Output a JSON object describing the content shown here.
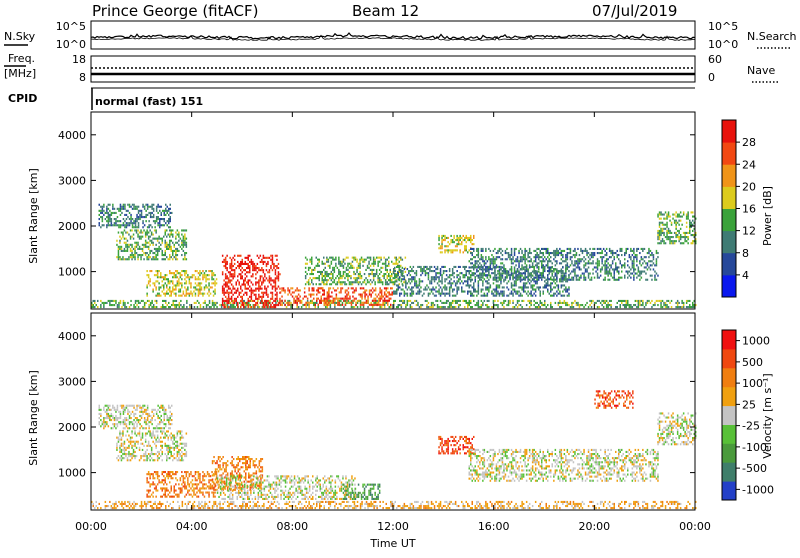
{
  "header": {
    "radar": "Prince George (fitACF)",
    "beam": "Beam 12",
    "date": "07/Jul/2019"
  },
  "noise_panel": {
    "left_label": "N.Sky",
    "left_ticks": [
      "10^5",
      "10^0"
    ],
    "right_label": "N.Search",
    "right_ticks": [
      "10^5",
      "10^0"
    ]
  },
  "freq_panel": {
    "left_label_1": "Freq.",
    "left_label_2": "[MHz]",
    "left_ticks": [
      "18",
      "8"
    ],
    "right_label": "Nave",
    "right_ticks": [
      "60",
      "0"
    ]
  },
  "cpid_panel": {
    "label": "CPID",
    "mode": "normal (fast) 151"
  },
  "chart_data": [
    {
      "type": "heatmap",
      "panel": "power",
      "x_unit": "hours UT",
      "xlim": [
        0,
        24
      ],
      "ylabel": "Slant Range [km]",
      "ylim": [
        180,
        4500
      ],
      "yticks": [
        "1000",
        "2000",
        "3000",
        "4000"
      ],
      "colorbar_label": "Power [dB]",
      "colorbar_ticks": [
        "4",
        "8",
        "12",
        "16",
        "20",
        "24",
        "28"
      ],
      "colorbar_colors": [
        "#0a18ee",
        "#26489a",
        "#3f7b74",
        "#3aa23a",
        "#dccb1d",
        "#f09418",
        "#f24812",
        "#e8120c"
      ],
      "echo_regions": [
        {
          "t": [
            0.0,
            24.0
          ],
          "r": [
            200,
            360
          ],
          "level": 3
        },
        {
          "t": [
            0.3,
            3.2
          ],
          "r": [
            1950,
            2450
          ],
          "level": 2
        },
        {
          "t": [
            1.0,
            3.8
          ],
          "r": [
            1250,
            1900
          ],
          "level": 3
        },
        {
          "t": [
            2.2,
            5.0
          ],
          "r": [
            450,
            1000
          ],
          "level": 4
        },
        {
          "t": [
            5.2,
            7.5
          ],
          "r": [
            200,
            1350
          ],
          "level": 7
        },
        {
          "t": [
            7.5,
            9.5
          ],
          "r": [
            250,
            650
          ],
          "level": 6
        },
        {
          "t": [
            8.5,
            12.5
          ],
          "r": [
            700,
            1300
          ],
          "level": 3
        },
        {
          "t": [
            9.0,
            12.0
          ],
          "r": [
            250,
            650
          ],
          "level": 6
        },
        {
          "t": [
            12.0,
            19.0
          ],
          "r": [
            450,
            1100
          ],
          "level": 2
        },
        {
          "t": [
            13.8,
            15.2
          ],
          "r": [
            1400,
            1800
          ],
          "level": 4
        },
        {
          "t": [
            15.0,
            22.5
          ],
          "r": [
            800,
            1500
          ],
          "level": 2
        },
        {
          "t": [
            22.5,
            24.0
          ],
          "r": [
            1600,
            2300
          ],
          "level": 3
        }
      ]
    },
    {
      "type": "heatmap",
      "panel": "velocity",
      "x_unit": "hours UT",
      "xlim": [
        0,
        24
      ],
      "xticks": [
        "00:00",
        "04:00",
        "08:00",
        "12:00",
        "16:00",
        "20:00",
        "00:00"
      ],
      "xlabel": "Time UT",
      "ylabel": "Slant Range [km]",
      "ylim": [
        180,
        4500
      ],
      "yticks": [
        "1000",
        "2000",
        "3000",
        "4000"
      ],
      "colorbar_label": "Velocity [m s⁻¹]",
      "colorbar_ticks": [
        "1000",
        "500",
        "100",
        "25",
        "-25",
        "-100",
        "-500",
        "-1000"
      ],
      "colorbar_colors": [
        "#2340c8",
        "#3f7e6a",
        "#4a9a3c",
        "#58c038",
        "#c4c4c4",
        "#f0a010",
        "#f07e10",
        "#f04810",
        "#f01010"
      ],
      "echo_regions": [
        {
          "t": [
            0.0,
            24.0
          ],
          "r": [
            200,
            360
          ],
          "level": 5
        },
        {
          "t": [
            0.3,
            3.2
          ],
          "r": [
            1950,
            2450
          ],
          "level": 4
        },
        {
          "t": [
            1.0,
            3.8
          ],
          "r": [
            1250,
            1900
          ],
          "level": 4
        },
        {
          "t": [
            2.2,
            5.0
          ],
          "r": [
            450,
            1000
          ],
          "level": 6
        },
        {
          "t": [
            4.8,
            6.8
          ],
          "r": [
            600,
            1350
          ],
          "level": 6
        },
        {
          "t": [
            5.0,
            10.5
          ],
          "r": [
            400,
            900
          ],
          "level": 4
        },
        {
          "t": [
            10.0,
            11.5
          ],
          "r": [
            400,
            750
          ],
          "level": 2
        },
        {
          "t": [
            13.8,
            15.2
          ],
          "r": [
            1400,
            1800
          ],
          "level": 7
        },
        {
          "t": [
            15.0,
            22.5
          ],
          "r": [
            800,
            1500
          ],
          "level": 4
        },
        {
          "t": [
            20.0,
            21.5
          ],
          "r": [
            2400,
            2800
          ],
          "level": 7
        },
        {
          "t": [
            22.5,
            24.0
          ],
          "r": [
            1600,
            2300
          ],
          "level": 4
        }
      ]
    }
  ]
}
